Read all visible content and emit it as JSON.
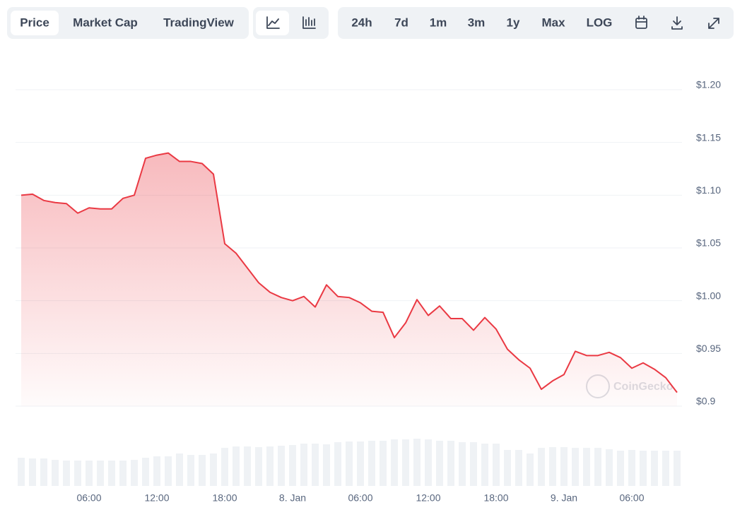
{
  "toolbar": {
    "tabs": [
      "Price",
      "Market Cap",
      "TradingView"
    ],
    "ranges": [
      "24h",
      "7d",
      "1m",
      "3m",
      "1y",
      "Max",
      "LOG"
    ]
  },
  "chart_data": {
    "type": "line",
    "watermark": "CoinGecko",
    "color": "#ea3943",
    "volume_color": "#eff2f5",
    "grid": true,
    "categories": [
      null,
      null,
      null,
      null,
      null,
      null,
      "06:00",
      null,
      null,
      null,
      null,
      null,
      "12:00",
      null,
      null,
      null,
      null,
      null,
      "18:00",
      null,
      null,
      null,
      null,
      null,
      "8. Jan",
      null,
      null,
      null,
      null,
      null,
      "06:00",
      null,
      null,
      null,
      null,
      null,
      "12:00",
      null,
      null,
      null,
      null,
      null,
      "18:00",
      null,
      null,
      null,
      null,
      null,
      "9. Jan",
      null,
      null,
      null,
      null,
      null,
      "06:00",
      null,
      null,
      null,
      null
    ],
    "values": [
      1.1,
      1.101,
      1.095,
      1.093,
      1.092,
      1.083,
      1.088,
      1.087,
      1.087,
      1.097,
      1.1,
      1.135,
      1.138,
      1.14,
      1.132,
      1.132,
      1.13,
      1.12,
      1.054,
      1.045,
      1.031,
      1.017,
      1.008,
      1.003,
      1.0,
      1.004,
      0.994,
      1.015,
      1.004,
      1.003,
      0.998,
      0.99,
      0.989,
      0.965,
      0.979,
      1.001,
      0.986,
      0.995,
      0.983,
      0.983,
      0.972,
      0.984,
      0.973,
      0.954,
      0.944,
      0.936,
      0.916,
      0.924,
      0.93,
      0.952,
      0.948,
      0.948,
      0.951,
      0.946,
      0.936,
      0.941,
      0.935,
      0.927,
      0.913
    ],
    "volumes": [
      40,
      39,
      39,
      37,
      36,
      36,
      36,
      36,
      36,
      36,
      37,
      40,
      42,
      42,
      46,
      44,
      44,
      46,
      54,
      56,
      56,
      55,
      56,
      57,
      58,
      60,
      60,
      59,
      62,
      63,
      63,
      64,
      64,
      66,
      66,
      67,
      66,
      64,
      64,
      62,
      62,
      60,
      60,
      51,
      51,
      46,
      54,
      55,
      55,
      54,
      54,
      54,
      52,
      50,
      51,
      50,
      50,
      50,
      50
    ],
    "ylim": [
      0.9,
      1.2
    ],
    "yticks": [
      {
        "value": 0.9,
        "label": "$0.9"
      },
      {
        "value": 0.95,
        "label": "$0.95"
      },
      {
        "value": 1.0,
        "label": "$1.00"
      },
      {
        "value": 1.05,
        "label": "$1.05"
      },
      {
        "value": 1.1,
        "label": "$1.10"
      },
      {
        "value": 1.15,
        "label": "$1.15"
      },
      {
        "value": 1.2,
        "label": "$1.20"
      }
    ]
  }
}
